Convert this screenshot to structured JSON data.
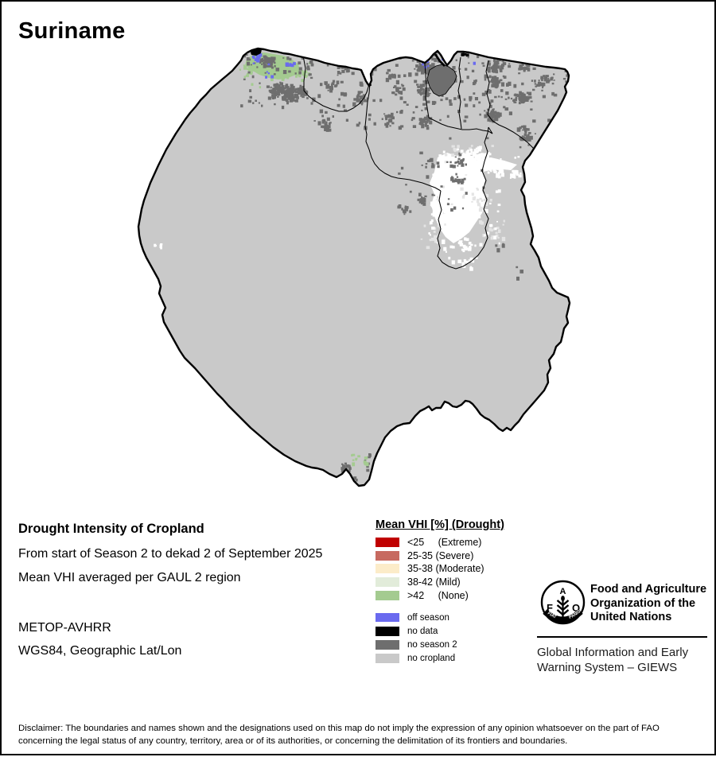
{
  "page": {
    "title": "Suriname",
    "background": "#ffffff",
    "border_color": "#000000"
  },
  "map": {
    "name": "Suriname drought intensity map",
    "land_color": "#c9c9c9",
    "outline_color": "#000000",
    "water_color": "#ffffff",
    "no_value_color": "#ffffff"
  },
  "info": {
    "heading": "Drought Intensity of Cropland",
    "period": "From start of Season 2 to dekad 2 of September 2025",
    "aggregation": "Mean VHI averaged per GAUL 2 region",
    "sensor": "METOP-AVHRR",
    "projection": "WGS84, Geographic Lat/Lon"
  },
  "legend": {
    "title": "Mean VHI [%] (Drought)",
    "drought_classes": [
      {
        "label": "<25     (Extreme)",
        "color": "#c00000"
      },
      {
        "label": "25-35 (Severe)",
        "color": "#c76a60"
      },
      {
        "label": "35-38 (Moderate)",
        "color": "#fcecc9"
      },
      {
        "label": "38-42 (Mild)",
        "color": "#e2ecda"
      },
      {
        "label": ">42     (None)",
        "color": "#a4cb90"
      }
    ],
    "other_classes": [
      {
        "label": "off season",
        "color": "#6a6aef"
      },
      {
        "label": "no data",
        "color": "#000000"
      },
      {
        "label": "no season 2",
        "color": "#6e6e6e"
      },
      {
        "label": "no cropland",
        "color": "#c9c9c9"
      }
    ]
  },
  "footer": {
    "fao_letters": {
      "f": "F",
      "a": "A",
      "o": "O"
    },
    "fao_motto": {
      "left": "FIAT",
      "right": "PANIS"
    },
    "org_name": "Food and Agriculture Organization of the United Nations",
    "giews": "Global Information and Early Warning System – GIEWS"
  },
  "disclaimer": {
    "line1": "Disclaimer: The boundaries and names shown and the designations used on this map do not imply the expression of any opinion whatsoever on the part of FAO",
    "line2": "concerning the legal status of any country, territory, area or of its authorities, or concerning the delimitation of its frontiers and boundaries."
  }
}
